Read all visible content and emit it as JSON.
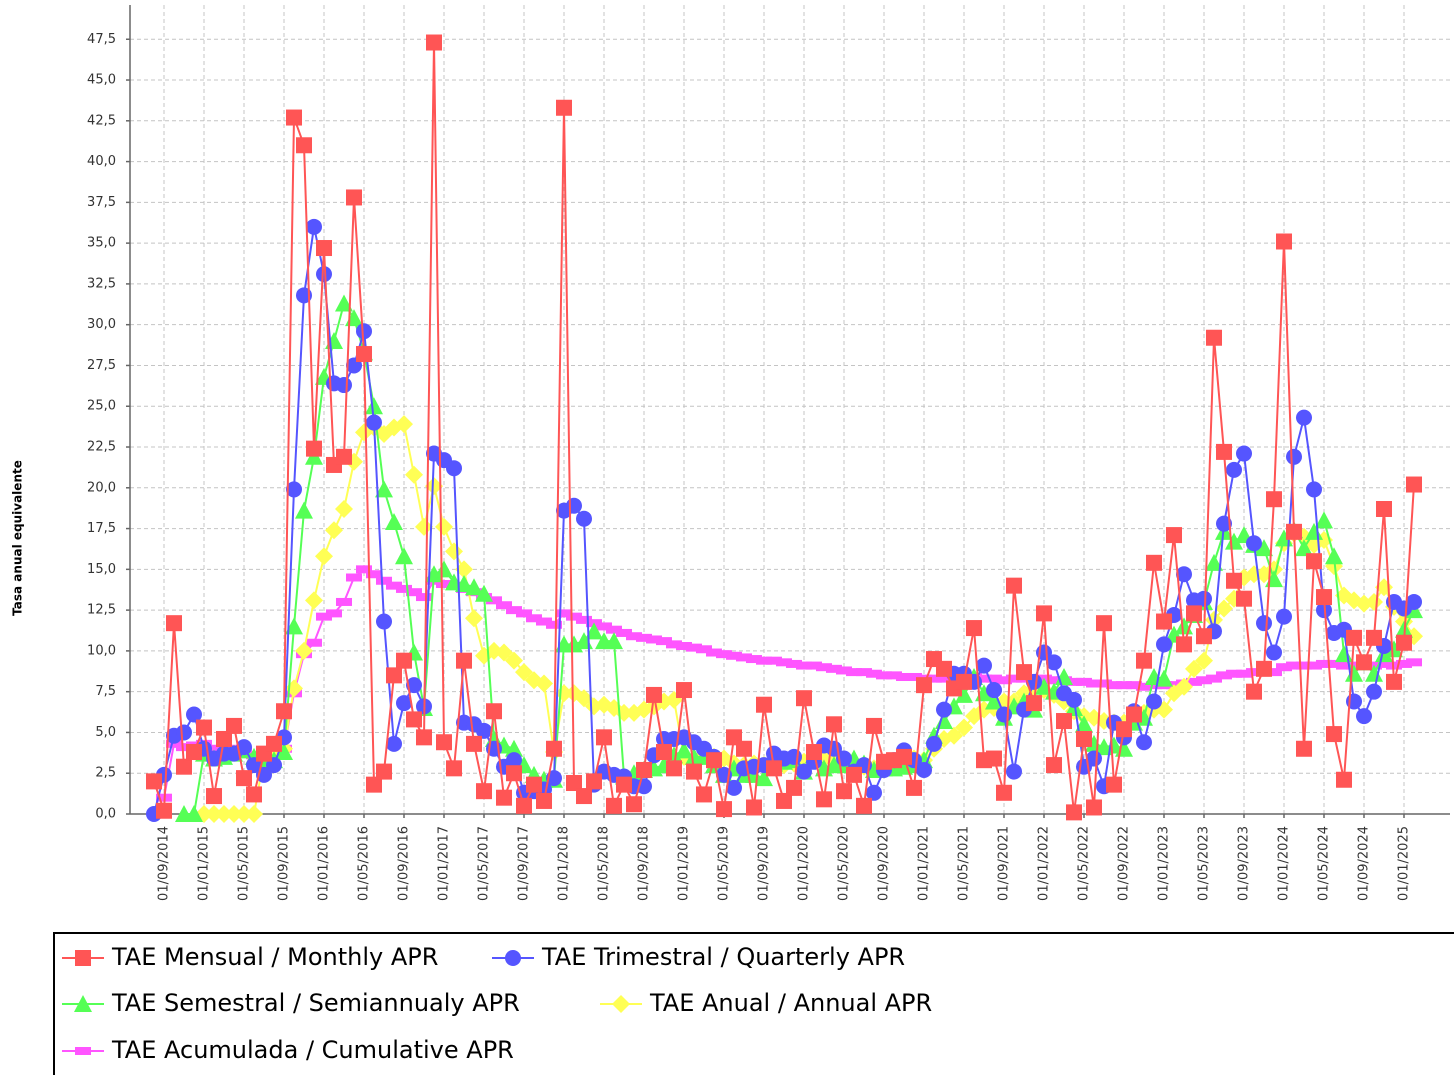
{
  "chart_data": {
    "type": "line",
    "y_label": "Tasa anual equivalente",
    "x": [
      "01/08/2014",
      "01/09/2014",
      "01/10/2014",
      "01/11/2014",
      "01/12/2014",
      "01/01/2015",
      "01/02/2015",
      "01/03/2015",
      "01/04/2015",
      "01/05/2015",
      "01/06/2015",
      "01/07/2015",
      "01/08/2015",
      "01/09/2015",
      "01/10/2015",
      "01/11/2015",
      "01/12/2015",
      "01/01/2016",
      "01/02/2016",
      "01/03/2016",
      "01/04/2016",
      "01/05/2016",
      "01/06/2016",
      "01/07/2016",
      "01/08/2016",
      "01/09/2016",
      "01/10/2016",
      "01/11/2016",
      "01/12/2016",
      "01/01/2017",
      "01/02/2017",
      "01/03/2017",
      "01/04/2017",
      "01/05/2017",
      "01/06/2017",
      "01/07/2017",
      "01/08/2017",
      "01/09/2017",
      "01/10/2017",
      "01/11/2017",
      "01/12/2017",
      "01/01/2018",
      "01/02/2018",
      "01/03/2018",
      "01/04/2018",
      "01/05/2018",
      "01/06/2018",
      "01/07/2018",
      "01/08/2018",
      "01/09/2018",
      "01/10/2018",
      "01/11/2018",
      "01/12/2018",
      "01/01/2019",
      "01/02/2019",
      "01/03/2019",
      "01/04/2019",
      "01/05/2019",
      "01/06/2019",
      "01/07/2019",
      "01/08/2019",
      "01/09/2019",
      "01/10/2019",
      "01/11/2019",
      "01/12/2019",
      "01/01/2020",
      "01/02/2020",
      "01/03/2020",
      "01/04/2020",
      "01/05/2020",
      "01/06/2020",
      "01/07/2020",
      "01/08/2020",
      "01/09/2020",
      "01/10/2020",
      "01/11/2020",
      "01/12/2020",
      "01/01/2021",
      "01/02/2021",
      "01/03/2021",
      "01/04/2021",
      "01/05/2021",
      "01/06/2021",
      "01/07/2021",
      "01/08/2021",
      "01/09/2021",
      "01/10/2021",
      "01/11/2021",
      "01/12/2021",
      "01/01/2022",
      "01/02/2022",
      "01/03/2022",
      "01/04/2022",
      "01/05/2022",
      "01/06/2022",
      "01/07/2022",
      "01/08/2022",
      "01/09/2022",
      "01/10/2022",
      "01/11/2022",
      "01/12/2022",
      "01/01/2023",
      "01/02/2023",
      "01/03/2023",
      "01/04/2023",
      "01/05/2023",
      "01/06/2023",
      "01/07/2023",
      "01/08/2023",
      "01/09/2023",
      "01/10/2023",
      "01/11/2023",
      "01/12/2023",
      "01/01/2024",
      "01/02/2024",
      "01/03/2024",
      "01/04/2024",
      "01/05/2024",
      "01/06/2024",
      "01/07/2024",
      "01/08/2024",
      "01/09/2024",
      "01/10/2024",
      "01/11/2024",
      "01/12/2024",
      "01/01/2025",
      "01/02/2025"
    ],
    "xticks": [
      "01/09/2014",
      "01/01/2015",
      "01/05/2015",
      "01/09/2015",
      "01/01/2016",
      "01/05/2016",
      "01/09/2016",
      "01/01/2017",
      "01/05/2017",
      "01/09/2017",
      "01/01/2018",
      "01/05/2018",
      "01/09/2018",
      "01/01/2019",
      "01/05/2019",
      "01/09/2019",
      "01/01/2020",
      "01/05/2020",
      "01/09/2020",
      "01/01/2021",
      "01/05/2021",
      "01/09/2021",
      "01/01/2022",
      "01/05/2022",
      "01/09/2022",
      "01/01/2023",
      "01/05/2023",
      "01/09/2023",
      "01/01/2024",
      "01/05/2024",
      "01/09/2024",
      "01/01/2025"
    ],
    "ylim": [
      0,
      49.6
    ],
    "yticks": [
      {
        "value": 0,
        "label": "0,0"
      },
      {
        "value": 2.5,
        "label": "2,5"
      },
      {
        "value": 5,
        "label": "5,0"
      },
      {
        "value": 7.5,
        "label": "7,5"
      },
      {
        "value": 10,
        "label": "10,0"
      },
      {
        "value": 12.5,
        "label": "12,5"
      },
      {
        "value": 15,
        "label": "15,0"
      },
      {
        "value": 17.5,
        "label": "17,5"
      },
      {
        "value": 20,
        "label": "20,0"
      },
      {
        "value": 22.5,
        "label": "22,5"
      },
      {
        "value": 25,
        "label": "25,0"
      },
      {
        "value": 27.5,
        "label": "27,5"
      },
      {
        "value": 30,
        "label": "30,0"
      },
      {
        "value": 32.5,
        "label": "32,5"
      },
      {
        "value": 35,
        "label": "35,0"
      },
      {
        "value": 37.5,
        "label": "37,5"
      },
      {
        "value": 40,
        "label": "40,0"
      },
      {
        "value": 42.5,
        "label": "42,5"
      },
      {
        "value": 45,
        "label": "45,0"
      },
      {
        "value": 47.5,
        "label": "47,5"
      }
    ],
    "grid": true,
    "series": [
      {
        "name": "TAE Mensual / Monthly APR",
        "color": "#ff5555",
        "marker": "square",
        "values": [
          2.0,
          0.2,
          11.7,
          2.9,
          3.8,
          5.3,
          1.1,
          4.6,
          5.4,
          2.2,
          1.2,
          3.7,
          4.3,
          6.3,
          42.7,
          41.0,
          22.4,
          34.7,
          21.4,
          21.9,
          37.8,
          28.2,
          1.8,
          2.6,
          8.5,
          9.4,
          5.8,
          4.7,
          47.3,
          4.4,
          2.8,
          9.4,
          4.3,
          1.4,
          6.3,
          1.0,
          2.5,
          0.5,
          1.8,
          0.8,
          4.0,
          43.3,
          1.9,
          1.1,
          2.0,
          4.7,
          0.5,
          1.8,
          0.6,
          2.7,
          7.3,
          3.8,
          2.8,
          7.6,
          2.6,
          1.2,
          3.3,
          0.3,
          4.7,
          4.0,
          0.4,
          6.7,
          2.8,
          0.8,
          1.6,
          7.1,
          3.8,
          0.9,
          5.5,
          1.4,
          2.4,
          0.5,
          5.4,
          3.2,
          3.3,
          3.5,
          1.6,
          7.9,
          9.5,
          8.9,
          7.7,
          8.1,
          11.4,
          3.3,
          3.4,
          1.3,
          14.0,
          8.7,
          6.8,
          12.3,
          3.0,
          5.7,
          0.1,
          4.6,
          0.4,
          11.7,
          1.8,
          5.2,
          6.1,
          9.4,
          15.4,
          11.8,
          17.1,
          10.4,
          12.3,
          10.9,
          29.2,
          22.2,
          14.3,
          13.2,
          7.5,
          8.9,
          19.3,
          35.1,
          17.3,
          4.0,
          15.5,
          13.3,
          4.9,
          2.1,
          10.8,
          9.3,
          10.8,
          18.7,
          8.1,
          10.5,
          20.2
        ]
      },
      {
        "name": "TAE Trimestral / Quarterly APR",
        "color": "#5555ff",
        "marker": "circle",
        "values": [
          0.0,
          2.4,
          4.8,
          5.0,
          6.1,
          4.0,
          3.4,
          3.7,
          3.7,
          4.1,
          3.0,
          2.4,
          3.0,
          4.7,
          19.9,
          31.8,
          36.0,
          33.1,
          26.4,
          26.3,
          27.5,
          29.6,
          24.0,
          11.8,
          4.3,
          6.8,
          7.9,
          6.6,
          22.1,
          21.7,
          21.2,
          5.6,
          5.5,
          5.1,
          4.0,
          2.9,
          3.3,
          1.3,
          1.4,
          1.5,
          2.2,
          18.6,
          18.9,
          18.1,
          1.8,
          2.6,
          2.4,
          2.3,
          1.7,
          1.7,
          3.6,
          4.6,
          4.6,
          4.7,
          4.4,
          4.0,
          3.5,
          2.4,
          1.6,
          2.8,
          2.9,
          3.0,
          3.7,
          3.4,
          3.5,
          2.6,
          3.2,
          4.2,
          4.0,
          3.4,
          2.6,
          3.0,
          1.3,
          2.7,
          3.3,
          3.9,
          3.3,
          2.7,
          4.3,
          6.4,
          8.6,
          8.6,
          8.1,
          9.1,
          7.6,
          6.1,
          2.6,
          6.4,
          8.1,
          9.9,
          9.3,
          7.4,
          7.0,
          2.9,
          3.4,
          1.7,
          5.6,
          4.7,
          6.3,
          4.4,
          6.9,
          10.4,
          12.2,
          14.7,
          13.1,
          13.2,
          11.2,
          17.8,
          21.1,
          22.1,
          16.6,
          11.7,
          9.9,
          12.1,
          21.9,
          24.3,
          19.9,
          12.5,
          11.1,
          11.3,
          6.9,
          6.0,
          7.5,
          10.3,
          13.0,
          12.6,
          13.0
        ]
      },
      {
        "name": "TAE Semestral / Semiannualy APR",
        "color": "#55ff55",
        "marker": "triangle",
        "values": [
          null,
          null,
          null,
          0.0,
          0.0,
          3.7,
          3.4,
          3.5,
          3.7,
          3.9,
          3.5,
          3.2,
          3.3,
          3.8,
          11.5,
          18.6,
          21.9,
          26.8,
          29.0,
          31.3,
          30.4,
          28.3,
          25.0,
          19.9,
          17.9,
          15.8,
          9.9,
          6.5,
          14.7,
          15.0,
          14.2,
          14.1,
          13.9,
          13.5,
          4.6,
          4.2,
          4.0,
          3.0,
          2.4,
          2.1,
          2.1,
          10.4,
          10.4,
          10.6,
          11.2,
          10.6,
          10.6,
          2.3,
          2.5,
          2.7,
          2.8,
          3.0,
          3.6,
          3.9,
          3.5,
          3.5,
          3.0,
          2.4,
          2.8,
          2.4,
          2.4,
          2.2,
          3.1,
          3.2,
          3.3,
          2.6,
          3.6,
          2.8,
          3.0,
          3.0,
          3.4,
          3.1,
          2.7,
          2.8,
          2.8,
          2.9,
          3.0,
          3.3,
          4.8,
          5.7,
          6.6,
          7.3,
          8.4,
          7.4,
          6.9,
          5.9,
          6.6,
          6.9,
          6.4,
          7.8,
          7.5,
          8.4,
          6.5,
          5.5,
          4.3,
          4.1,
          4.2,
          4.0,
          5.6,
          5.9,
          8.4,
          8.3,
          11.0,
          11.5,
          12.2,
          13.0,
          15.4,
          17.3,
          16.7,
          17.1,
          16.5,
          16.3,
          14.4,
          16.9,
          17.4,
          16.3,
          17.3,
          18.0,
          15.8,
          9.8,
          8.6,
          9.3,
          8.6,
          9.8,
          10.1,
          11.3,
          12.5
        ]
      },
      {
        "name": "TAE Anual / Annual APR",
        "color": "#ffff55",
        "marker": "diamond",
        "values": [
          null,
          null,
          null,
          null,
          null,
          0.0,
          0.0,
          0.0,
          0.0,
          0.0,
          0.0,
          3.5,
          3.5,
          4.0,
          7.7,
          10.0,
          13.1,
          15.8,
          17.4,
          18.7,
          21.6,
          23.4,
          23.7,
          23.3,
          23.7,
          23.9,
          20.8,
          17.6,
          20.1,
          17.6,
          16.1,
          15.0,
          12.0,
          9.7,
          10.0,
          9.9,
          9.4,
          8.7,
          8.2,
          8.0,
          3.8,
          7.4,
          7.4,
          7.1,
          6.6,
          6.7,
          6.5,
          6.2,
          6.2,
          6.4,
          6.6,
          6.9,
          7.0,
          3.5,
          3.3,
          3.6,
          3.5,
          3.4,
          3.1,
          3.0,
          3.1,
          3.0,
          2.9,
          3.0,
          3.1,
          3.2,
          3.3,
          3.4,
          3.3,
          3.1,
          3.0,
          2.9,
          2.8,
          2.8,
          3.0,
          3.2,
          3.4,
          3.3,
          4.0,
          4.6,
          4.8,
          5.3,
          6.0,
          6.4,
          6.5,
          6.9,
          6.9,
          7.4,
          7.7,
          7.6,
          7.3,
          6.9,
          6.3,
          6.0,
          5.9,
          5.7,
          5.6,
          5.6,
          5.8,
          6.2,
          6.4,
          6.4,
          7.4,
          7.8,
          8.9,
          9.4,
          11.9,
          12.6,
          13.2,
          14.5,
          14.7,
          14.7,
          15.0,
          16.6,
          17.2,
          17.0,
          16.5,
          16.8,
          15.2,
          13.4,
          13.1,
          12.9,
          13.0,
          13.9,
          12.7,
          11.8,
          10.9
        ]
      },
      {
        "name": "TAE Acumulada / Cumulative APR",
        "color": "#ff55ff",
        "marker": "bar",
        "values": [
          null,
          1.0,
          4.3,
          4.1,
          4.2,
          4.3,
          4.0,
          3.9,
          4.0,
          3.8,
          3.6,
          3.5,
          3.6,
          4.0,
          7.4,
          9.8,
          10.5,
          12.1,
          12.3,
          13.0,
          14.5,
          15.0,
          14.7,
          14.3,
          14.0,
          13.8,
          13.6,
          13.3,
          14.3,
          14.1,
          14.0,
          13.8,
          13.6,
          13.3,
          13.1,
          12.8,
          12.5,
          12.3,
          12.0,
          11.8,
          11.6,
          12.3,
          12.1,
          11.9,
          11.7,
          11.5,
          11.3,
          11.1,
          10.9,
          10.8,
          10.7,
          10.6,
          10.4,
          10.3,
          10.2,
          10.1,
          9.9,
          9.8,
          9.7,
          9.6,
          9.5,
          9.4,
          9.4,
          9.3,
          9.2,
          9.1,
          9.1,
          9.0,
          8.9,
          8.8,
          8.7,
          8.7,
          8.6,
          8.5,
          8.5,
          8.4,
          8.4,
          8.3,
          8.3,
          8.3,
          8.3,
          8.3,
          8.4,
          8.3,
          8.3,
          8.2,
          8.3,
          8.3,
          8.2,
          8.3,
          8.2,
          8.2,
          8.1,
          8.1,
          8.0,
          8.0,
          7.9,
          7.9,
          7.9,
          7.8,
          7.9,
          7.9,
          7.9,
          8.0,
          8.1,
          8.2,
          8.3,
          8.5,
          8.6,
          8.6,
          8.7,
          8.7,
          8.7,
          9.0,
          9.1,
          9.1,
          9.1,
          9.2,
          9.2,
          9.1,
          9.1,
          9.1,
          9.1,
          9.2,
          9.1,
          9.2,
          9.3
        ]
      }
    ]
  }
}
